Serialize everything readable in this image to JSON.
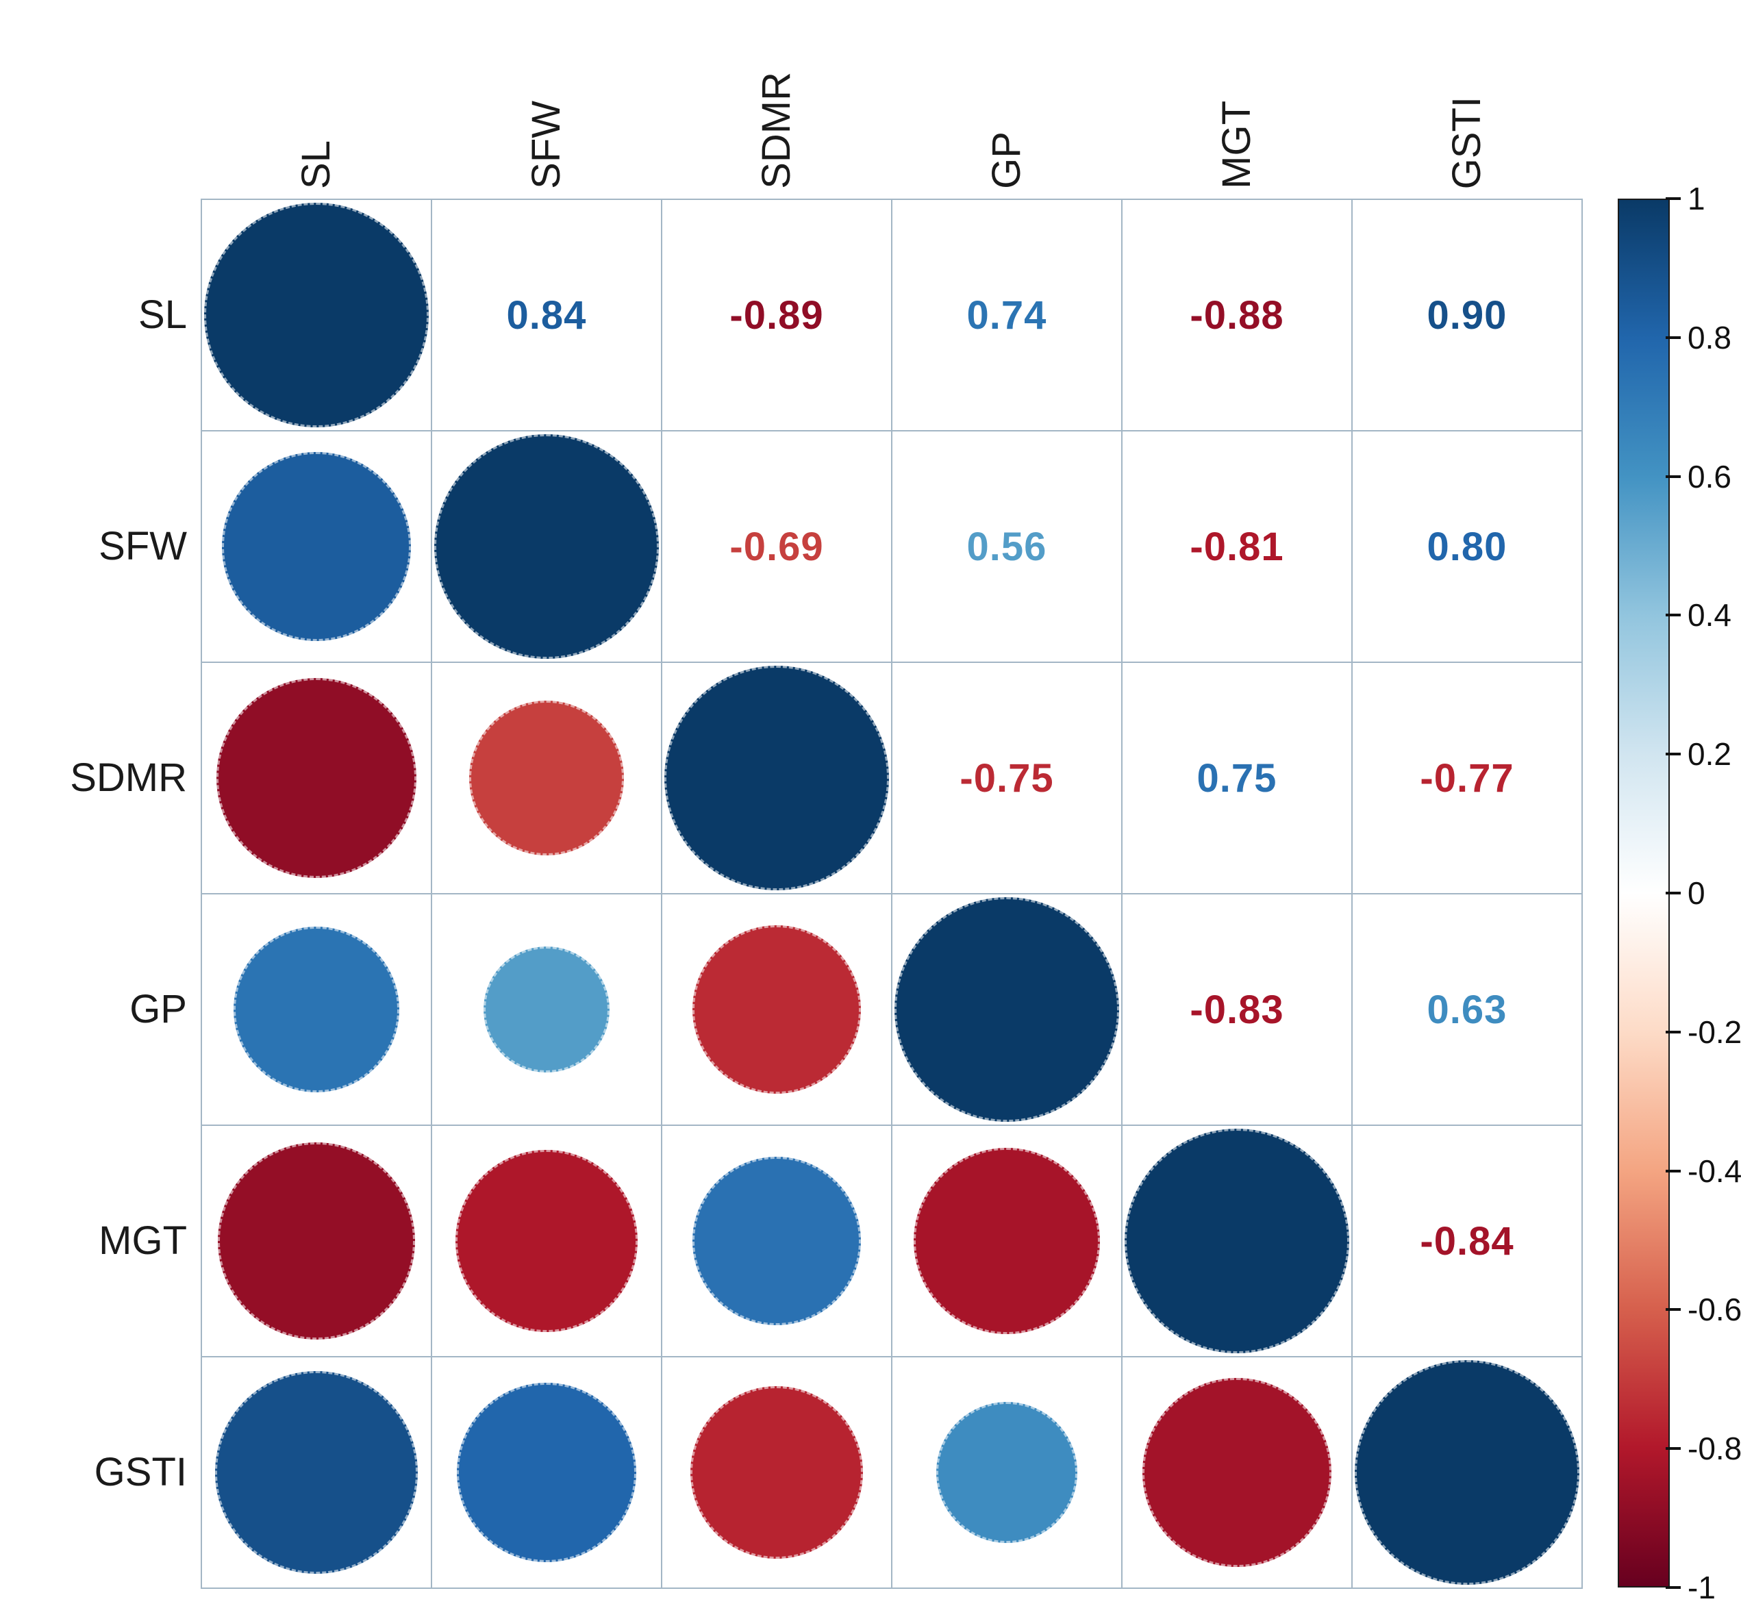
{
  "figure": {
    "background": "#ffffff",
    "grid_color": "#a3b6c5",
    "label_color": "#1a1a1a"
  },
  "chart_data": {
    "type": "heatmap",
    "subtype": "correlation-matrix",
    "title": "",
    "variables": [
      "SL",
      "SFW",
      "SDMR",
      "GP",
      "MGT",
      "GSTI"
    ],
    "matrix": [
      [
        1.0,
        0.84,
        -0.89,
        0.74,
        -0.88,
        0.9
      ],
      [
        0.84,
        1.0,
        -0.69,
        0.56,
        -0.81,
        0.8
      ],
      [
        -0.89,
        -0.69,
        1.0,
        -0.75,
        0.75,
        -0.77
      ],
      [
        0.74,
        0.56,
        -0.75,
        1.0,
        -0.83,
        0.63
      ],
      [
        -0.88,
        -0.81,
        0.75,
        -0.83,
        1.0,
        -0.84
      ],
      [
        0.9,
        0.8,
        -0.77,
        0.63,
        -0.84,
        1.0
      ]
    ],
    "upper_triangle_style": "numbers",
    "lower_triangle_style": "circles",
    "diagonal_style": "circles",
    "value_range": [
      -1,
      1
    ],
    "grid": true,
    "legend_position": "right",
    "colorbar": {
      "tick_labels": [
        "1",
        "0.8",
        "0.6",
        "0.4",
        "0.2",
        "0",
        "-0.2",
        "-0.4",
        "-0.6",
        "-0.8",
        "-1"
      ],
      "tick_values": [
        1,
        0.8,
        0.6,
        0.4,
        0.2,
        0,
        -0.2,
        -0.4,
        -0.6,
        -0.8,
        -1
      ]
    },
    "palette": {
      "anchors": [
        -1,
        -0.8,
        -0.6,
        -0.4,
        -0.2,
        0,
        0.2,
        0.4,
        0.6,
        0.8,
        1
      ],
      "colors": [
        "#67001F",
        "#B2182B",
        "#D6604D",
        "#F4A582",
        "#FDDBC7",
        "#FFFFFF",
        "#D1E5F0",
        "#92C5DE",
        "#4393C3",
        "#2166AC",
        "#0A3A67"
      ]
    }
  }
}
